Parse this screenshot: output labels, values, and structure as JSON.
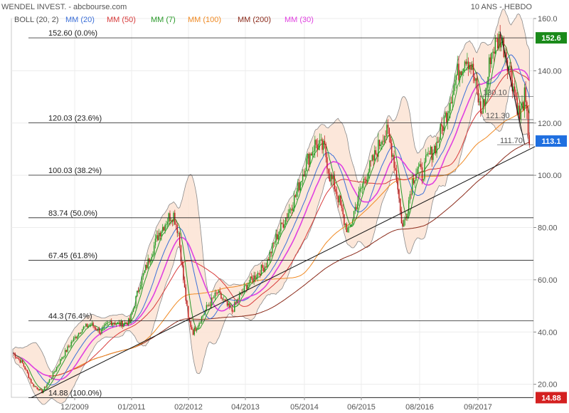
{
  "header": {
    "title": "WENDEL INVEST. - abcbourse.com",
    "period": "10 ANS - HEBDO"
  },
  "legend": [
    {
      "label": "BOLL (20, 2)",
      "color": "#555555"
    },
    {
      "label": "MM (20)",
      "color": "#3b6fd8"
    },
    {
      "label": "MM (50)",
      "color": "#d83b3b"
    },
    {
      "label": "MM (7)",
      "color": "#2a9a2a"
    },
    {
      "label": "MM (100)",
      "color": "#f08a24"
    },
    {
      "label": "MM (200)",
      "color": "#8b2a1a"
    },
    {
      "label": "MM (30)",
      "color": "#e040e0"
    }
  ],
  "chart_data": {
    "type": "line",
    "y_axis": {
      "side": "right",
      "min": 15,
      "max": 160,
      "ticks": [
        20,
        40,
        60,
        80,
        100,
        120,
        140,
        160
      ],
      "tick_labels": [
        "20.00",
        "40.00",
        "60.00",
        "80.00",
        "100.00",
        "120.00",
        "140.00",
        "160.0"
      ]
    },
    "x_axis": {
      "ticks": [
        "12/2009",
        "01/2011",
        "02/2012",
        "04/2013",
        "05/2014",
        "06/2015",
        "08/2016",
        "09/2017"
      ]
    },
    "fib_levels": [
      {
        "value": 152.6,
        "label": "152.60  (0.0%)"
      },
      {
        "value": 120.03,
        "label": "120.03  (23.6%)"
      },
      {
        "value": 100.03,
        "label": "100.03  (38.2%)"
      },
      {
        "value": 83.74,
        "label": "83.74  (50.0%)"
      },
      {
        "value": 67.45,
        "label": "67.45  (61.8%)"
      },
      {
        "value": 44.3,
        "label": "44.3"
      },
      {
        "value": 14.88,
        "label": "14.88  (100.0%)"
      }
    ],
    "fib_overlap_label": "(76.4%)",
    "small_levels": [
      {
        "value": 130.1,
        "label": "130.10"
      },
      {
        "value": 121.3,
        "label": "121.30"
      },
      {
        "value": 111.7,
        "label": "111.70"
      }
    ],
    "badges": [
      {
        "value": 152.6,
        "text": "152.6",
        "color": "#1a8a1a"
      },
      {
        "value": 113.1,
        "text": "113.1",
        "color": "#1f6fe0"
      },
      {
        "value": 14.88,
        "text": "14.88",
        "color": "#d42020"
      }
    ],
    "trendline": {
      "from": {
        "week": 0,
        "value": 14.88
      },
      "to": {
        "week": 417,
        "value": 111
      }
    },
    "short_line": {
      "from": {
        "week": 400,
        "value": 155
      },
      "to": {
        "week": 420,
        "value": 112
      }
    },
    "price_path": [
      [
        0,
        32
      ],
      [
        8,
        28
      ],
      [
        16,
        20
      ],
      [
        24,
        17
      ],
      [
        32,
        23
      ],
      [
        40,
        30
      ],
      [
        48,
        36
      ],
      [
        56,
        41
      ],
      [
        64,
        43
      ],
      [
        72,
        40
      ],
      [
        80,
        44
      ],
      [
        88,
        43
      ],
      [
        96,
        44
      ],
      [
        104,
        58
      ],
      [
        112,
        68
      ],
      [
        120,
        78
      ],
      [
        128,
        84
      ],
      [
        132,
        85
      ],
      [
        136,
        78
      ],
      [
        140,
        60
      ],
      [
        144,
        45
      ],
      [
        148,
        40
      ],
      [
        152,
        43
      ],
      [
        160,
        50
      ],
      [
        168,
        55
      ],
      [
        176,
        50
      ],
      [
        180,
        48
      ],
      [
        184,
        52
      ],
      [
        192,
        58
      ],
      [
        200,
        62
      ],
      [
        208,
        66
      ],
      [
        216,
        76
      ],
      [
        224,
        84
      ],
      [
        232,
        92
      ],
      [
        240,
        104
      ],
      [
        248,
        112
      ],
      [
        256,
        110
      ],
      [
        260,
        100
      ],
      [
        264,
        96
      ],
      [
        268,
        90
      ],
      [
        272,
        82
      ],
      [
        276,
        78
      ],
      [
        280,
        86
      ],
      [
        288,
        98
      ],
      [
        296,
        106
      ],
      [
        304,
        116
      ],
      [
        308,
        116
      ],
      [
        312,
        108
      ],
      [
        316,
        96
      ],
      [
        318,
        86
      ],
      [
        320,
        80
      ],
      [
        324,
        88
      ],
      [
        328,
        98
      ],
      [
        332,
        103
      ],
      [
        336,
        100
      ],
      [
        340,
        106
      ],
      [
        348,
        112
      ],
      [
        356,
        124
      ],
      [
        364,
        138
      ],
      [
        372,
        146
      ],
      [
        376,
        142
      ],
      [
        380,
        134
      ],
      [
        384,
        124
      ],
      [
        388,
        130
      ],
      [
        392,
        146
      ],
      [
        396,
        150
      ],
      [
        400,
        152.6
      ],
      [
        404,
        148
      ],
      [
        408,
        140
      ],
      [
        412,
        132
      ],
      [
        416,
        122
      ],
      [
        420,
        130
      ],
      [
        424,
        113
      ]
    ],
    "weeks_total": 425
  }
}
